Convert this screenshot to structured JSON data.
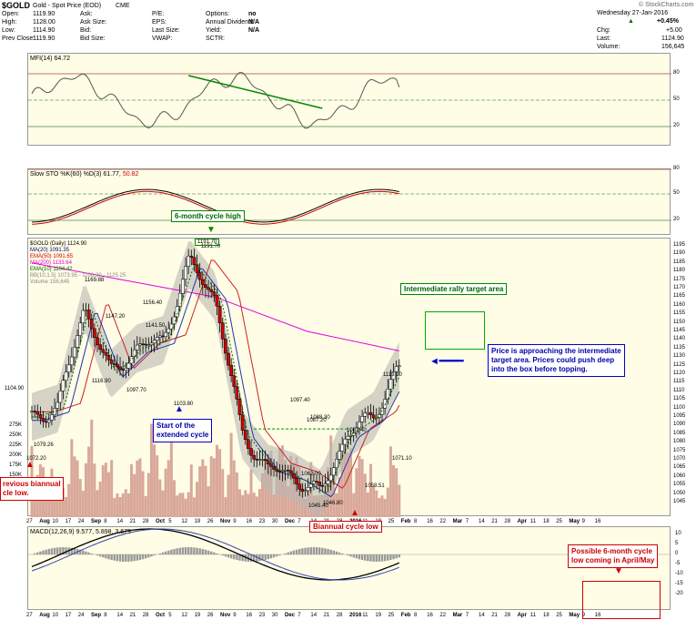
{
  "header": {
    "symbol": "$GOLD",
    "name": "Gold - Spot Price (EOD)",
    "exchange": "CME",
    "copyright": "© StockCharts.com",
    "date": "Wednesday 27-Jan-2016",
    "change_pct": "+0.45%",
    "chg_label": "Chg:",
    "chg": "+5.00",
    "last_label": "Last:",
    "last": "1124.90",
    "volume_label": "Volume:",
    "volume": "156,645",
    "fields": [
      {
        "label": "Open:",
        "value": "1119.90"
      },
      {
        "label": "High:",
        "value": "1128.00"
      },
      {
        "label": "Low:",
        "value": "1114.90"
      },
      {
        "label": "Prev Close:",
        "value": "1119.90"
      }
    ],
    "fields2": [
      {
        "label": "Ask:",
        "value": ""
      },
      {
        "label": "Ask Size:",
        "value": ""
      },
      {
        "label": "Bid:",
        "value": ""
      },
      {
        "label": "Bid Size:",
        "value": ""
      }
    ],
    "fields3": [
      {
        "label": "P/E:",
        "value": ""
      },
      {
        "label": "EPS:",
        "value": ""
      },
      {
        "label": "Last Size:",
        "value": ""
      },
      {
        "label": "VWAP:",
        "value": ""
      }
    ],
    "fields4": [
      {
        "label": "Options:",
        "value": "no"
      },
      {
        "label": "Annual Dividend:",
        "value": "N/A"
      },
      {
        "label": "Yield:",
        "value": "N/A"
      },
      {
        "label": "SCTR:",
        "value": ""
      }
    ]
  },
  "mfi": {
    "label": "MFI(14) 64.72",
    "ticks": [
      "80",
      "50",
      "20"
    ]
  },
  "sto": {
    "label": "Slow STO %K(60) %D(3) 61.77,",
    "d_value": "50.82",
    "ticks": [
      "80",
      "50",
      "20"
    ]
  },
  "macd": {
    "label": "MACD(12,26,9) 9.577, 5.898, 3.679",
    "ticks": [
      "10",
      "5",
      "0",
      "-5",
      "-10",
      "-15",
      "-20"
    ]
  },
  "legend": [
    {
      "text": "$GOLD (Daily) 1124.90",
      "color": "#000000"
    },
    {
      "text": "MA(20) 1091.35",
      "color": "#000080"
    },
    {
      "text": "EMA(50) 1091.65",
      "color": "#cc0000"
    },
    {
      "text": "MA(200) 1133.64",
      "color": "#e000e0"
    },
    {
      "text": "EMA(10) 1104.42",
      "color": "#006600"
    },
    {
      "text": "BB(10,1.5) 1073.95 - 1106.30 - 1125.25",
      "color": "#888888"
    },
    {
      "text": "Volume 156,645",
      "color": "#888888"
    }
  ],
  "price_ticks": [
    "1195",
    "1190",
    "1185",
    "1180",
    "1175",
    "1170",
    "1165",
    "1160",
    "1155",
    "1150",
    "1145",
    "1140",
    "1135",
    "1130",
    "1125",
    "1120",
    "1115",
    "1110",
    "1105",
    "1100",
    "1095",
    "1090",
    "1085",
    "1080",
    "1075",
    "1070",
    "1065",
    "1060",
    "1055",
    "1050",
    "1045"
  ],
  "volume_ticks": [
    "275K",
    "250K",
    "225K",
    "200K",
    "175K",
    "150K",
    "125K",
    "25000"
  ],
  "x_ticks": [
    "27",
    "Aug",
    "10",
    "17",
    "24",
    "Sep",
    "8",
    "14",
    "21",
    "28",
    "Oct",
    "5",
    "12",
    "19",
    "26",
    "Nov",
    "9",
    "16",
    "23",
    "30",
    "Dec",
    "7",
    "14",
    "21",
    "28",
    "2016",
    "11",
    "19",
    "25",
    "Feb",
    "8",
    "16",
    "22",
    "Mar",
    "7",
    "14",
    "21",
    "28",
    "Apr",
    "11",
    "18",
    "25",
    "May",
    "9",
    "16"
  ],
  "price_labels": [
    "1104.90",
    "1079.26",
    "1072.20",
    "1169.88",
    "1147.20",
    "1116.90",
    "1097.70",
    "1156.40",
    "1141.50",
    "1103.80",
    "1191.70",
    "1097.40",
    "1087.20",
    "1088.30",
    "1081.40",
    "1062.00",
    "1045.40",
    "1046.80",
    "1058.51",
    "1071.10",
    "1113.10"
  ],
  "annotations": {
    "cycle_high": "6-month cycle high",
    "rally_target": "Intermediate rally target area",
    "approach": [
      "Price is approaching the intermediate",
      "target area. Prices could push deep",
      "into the box before topping."
    ],
    "extended": [
      "Start of the",
      "extended cycle"
    ],
    "prev_low": [
      "revious biannual",
      "cle low."
    ],
    "biannual": "Biannual cycle low",
    "possible": [
      "Possible 6-month cycle",
      "low coming in April/May"
    ]
  },
  "chart_data": {
    "type": "line",
    "title": "$GOLD Gold - Spot Price (EOD) CME",
    "series": [
      {
        "name": "$GOLD (Daily) close",
        "x": [
          "2015-07-27",
          "2015-08-10",
          "2015-08-24",
          "2015-09-08",
          "2015-09-21",
          "2015-10-05",
          "2015-10-14",
          "2015-10-26",
          "2015-11-09",
          "2015-11-23",
          "2015-12-03",
          "2015-12-17",
          "2016-01-04",
          "2016-01-19",
          "2016-01-27"
        ],
        "values": [
          1095,
          1100,
          1160,
          1120,
          1135,
          1140,
          1185,
          1165,
          1085,
          1065,
          1060,
          1050,
          1085,
          1095,
          1124.9
        ]
      },
      {
        "name": "MA(200)",
        "x": [
          "2015-07-27",
          "2015-10-05",
          "2015-11-09",
          "2015-12-17",
          "2016-01-27"
        ],
        "values": [
          1185,
          1175,
          1165,
          1145,
          1133.64
        ]
      }
    ],
    "ylim": [
      1045,
      1195
    ],
    "annotated_levels": {
      "cycle_high": 1191.7,
      "biannual_low": 1046.8,
      "prev_biannual_low": 1072.2,
      "last": 1124.9
    },
    "mfi_value": 64.72,
    "sto_k": 61.77,
    "sto_d": 50.82,
    "macd": [
      9.577,
      5.898,
      3.679
    ]
  }
}
